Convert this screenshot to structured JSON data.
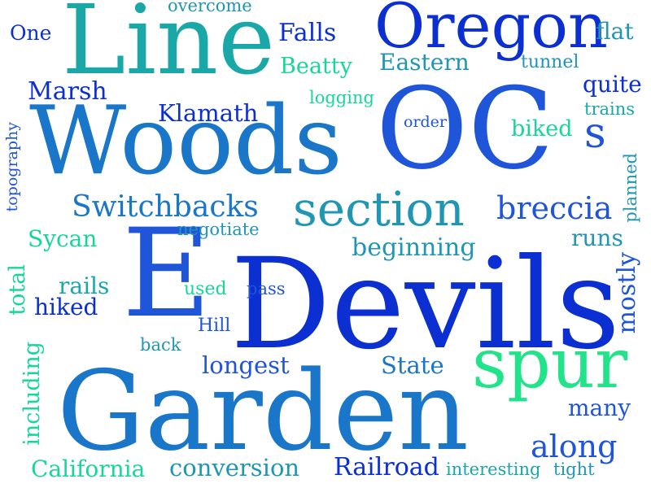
{
  "palette": {
    "dark_blue": "#0b2fd0",
    "royal_blue": "#1f55d8",
    "medium_blue": "#1976c8",
    "teal": "#1f96b4",
    "cyan_teal": "#1aa7a8",
    "green": "#22e38a",
    "mint": "#17d69a"
  },
  "words": [
    "Devils",
    "Garden",
    "Woods",
    "OC",
    "E",
    "Line",
    "Oregon",
    "spur",
    "section",
    "Switchbacks",
    "breccia",
    "s",
    "Klamath",
    "Marsh",
    "Eastern",
    "Beatty",
    "Falls",
    "One",
    "overcome",
    "flat",
    "tunnel",
    "quite",
    "trains",
    "logging",
    "order",
    "biked",
    "topography",
    "planned",
    "Sycan",
    "negotiate",
    "beginning",
    "runs",
    "rails",
    "used",
    "pass",
    "hiked",
    "total",
    "mostly",
    "Hill",
    "back",
    "longest",
    "State",
    "many",
    "including",
    "along",
    "California",
    "conversion",
    "Railroad",
    "interesting",
    "tight"
  ]
}
